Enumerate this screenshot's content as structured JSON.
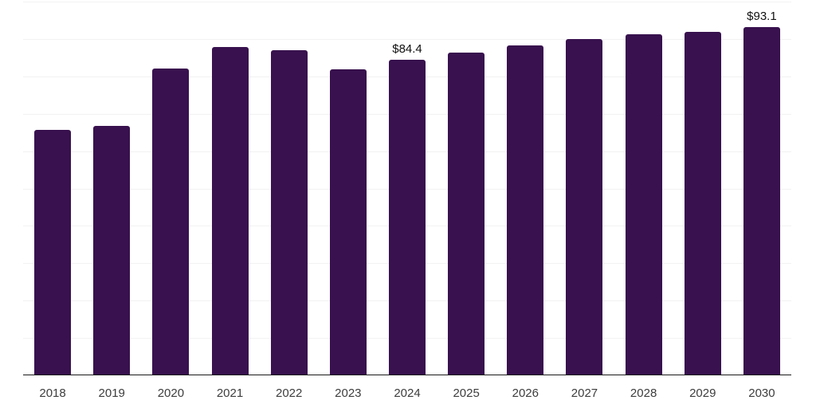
{
  "chart_data": {
    "type": "bar",
    "title": "",
    "xlabel": "",
    "ylabel": "",
    "categories": [
      "2018",
      "2019",
      "2020",
      "2021",
      "2022",
      "2023",
      "2024",
      "2025",
      "2026",
      "2027",
      "2028",
      "2029",
      "2030"
    ],
    "values": [
      65.7,
      66.7,
      82.1,
      87.9,
      87.1,
      81.8,
      84.4,
      86.3,
      88.3,
      90.0,
      91.3,
      91.9,
      93.1
    ],
    "data_labels": [
      {
        "category": "2024",
        "text": "$84.4"
      },
      {
        "category": "2030",
        "text": "$93.1"
      }
    ],
    "ylim": [
      0,
      100
    ],
    "grid_step": 10,
    "grid": "horizontal",
    "legend": "none",
    "colors": {
      "bar": "#38114e",
      "gridline": "#f2f2f2",
      "axis_line": "#1a1a1a",
      "tick_label": "#3d3d3d",
      "data_label": "#111111",
      "background": "#ffffff"
    }
  }
}
